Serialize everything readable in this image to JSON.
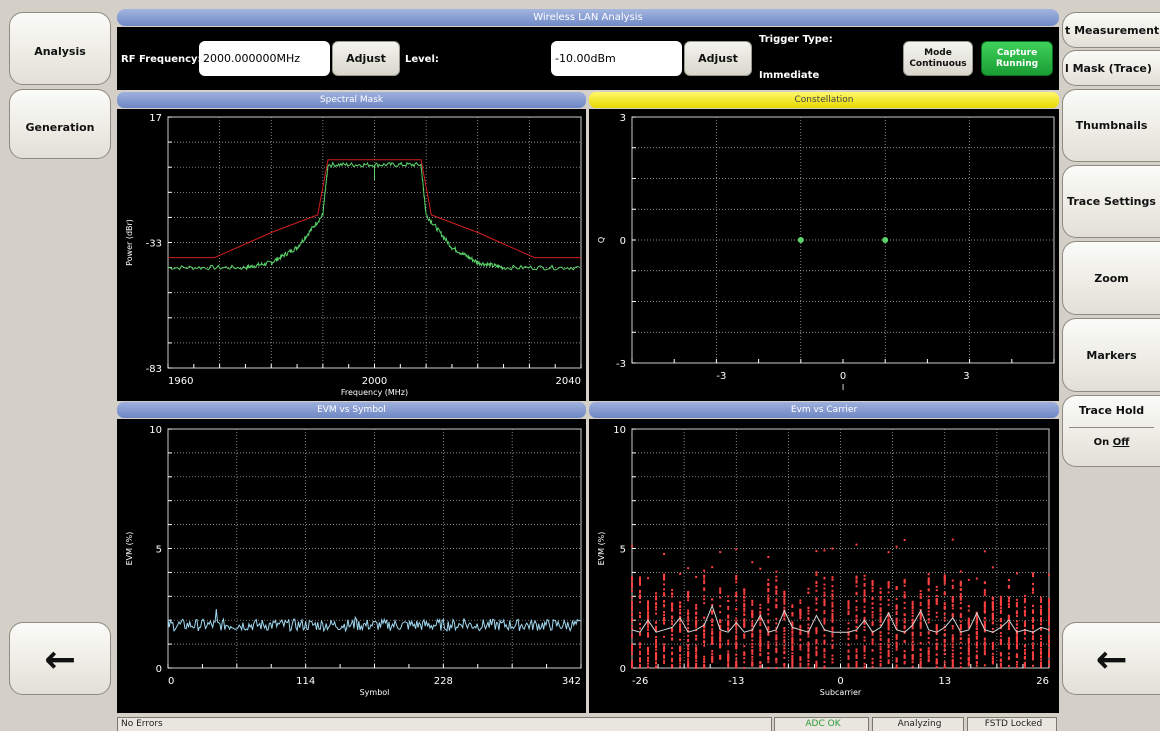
{
  "left_panel": {
    "analysis_label": "Analysis",
    "generation_label": "Generation",
    "back_arrow": "←"
  },
  "right_panel": {
    "measurement_label": "t Measurement",
    "mask_trace_label": "l Mask (Trace)",
    "thumbnails_label": "Thumbnails",
    "trace_settings_label": "Trace Settings",
    "zoom_label": "Zoom",
    "markers_label": "Markers",
    "trace_hold_label": "Trace Hold",
    "trace_hold_on": "On",
    "trace_hold_off": "Off",
    "back_arrow": "←"
  },
  "title": "Wireless LAN Analysis",
  "controls": {
    "rf_frequency_label": "RF Frequency:",
    "rf_frequency_value": "2000.000000MHz",
    "adjust_label": "Adjust",
    "level_label": "Level:",
    "level_value": "-10.00dBm",
    "trigger_type_label": "Trigger Type:",
    "trigger_type_value": "Immediate",
    "mode_line1": "Mode",
    "mode_line2": "Continuous",
    "capture_line1": "Capture",
    "capture_line2": "Running"
  },
  "colors": {
    "accent_blue": "#6d86c4",
    "constellation_yellow": "#f2e600",
    "trace_green": "#5bd46a",
    "mask_red": "#d02020",
    "evm_symbol_trace": "#9fd8f0",
    "evm_carrier_points": "#ff4040",
    "capture_green": "#1a9d34"
  },
  "chart_data": [
    {
      "name": "Spectral Mask",
      "type": "line",
      "xlabel": "Frequency (MHz)",
      "ylabel": "Power (dBr)",
      "xlim": [
        1960,
        2040
      ],
      "ylim": [
        -83,
        17
      ],
      "xticks": [
        "1960",
        "2000",
        "2040"
      ],
      "yticks": [
        "17",
        "-33",
        "-83"
      ],
      "series": [
        {
          "color": "mask_red",
          "x": [
            1960,
            1969,
            1980,
            1989,
            1991,
            2009,
            2011,
            2020,
            2031,
            2040
          ],
          "y": [
            -39,
            -39,
            -29,
            -22,
            0,
            0,
            -22,
            -29,
            -39,
            -39
          ]
        },
        {
          "color": "trace_green",
          "x": [
            1960,
            1975,
            1980,
            1985,
            1990,
            1991,
            2000,
            2009,
            2010,
            2015,
            2020,
            2025,
            2040
          ],
          "y": [
            -43,
            -43,
            -41,
            -35,
            -22,
            -2,
            -2,
            -2,
            -22,
            -35,
            -41,
            -43,
            -43
          ]
        }
      ]
    },
    {
      "name": "Constellation",
      "type": "scatter",
      "xlabel": "I",
      "ylabel": "Q",
      "xlim": [
        -5,
        5
      ],
      "ylim": [
        -3,
        3
      ],
      "xticks": [
        "-3",
        "0",
        "3"
      ],
      "yticks": [
        "3",
        "0",
        "-3"
      ],
      "points": [
        [
          -1,
          0
        ],
        [
          1,
          0
        ]
      ]
    },
    {
      "name": "EVM vs Symbol",
      "type": "line",
      "xlabel": "Symbol",
      "ylabel": "EVM (%)",
      "xlim": [
        0,
        342
      ],
      "ylim": [
        0,
        10
      ],
      "xticks": [
        "0",
        "114",
        "228",
        "342"
      ],
      "yticks": [
        "10",
        "5",
        "0"
      ],
      "mean": 1.8,
      "spread": 0.25
    },
    {
      "name": "Evm vs Carrier",
      "type": "scatter",
      "xlabel": "Subcarrier",
      "ylabel": "EVM (%)",
      "xlim": [
        -26,
        26
      ],
      "ylim": [
        0,
        10
      ],
      "xticks": [
        "-26",
        "-13",
        "0",
        "13",
        "26"
      ],
      "yticks": [
        "10",
        "5",
        "0"
      ],
      "mean_line": [
        1.6,
        1.5,
        2.0,
        1.5,
        1.6,
        1.7,
        2.1,
        1.5,
        1.6,
        1.8,
        2.6,
        1.6,
        1.5,
        1.9,
        1.5,
        1.6,
        2.2,
        1.5,
        1.6,
        2.4,
        1.7,
        1.6,
        1.5,
        2.2,
        1.6,
        1.5,
        1.5,
        1.6,
        2.0,
        1.5,
        1.7,
        2.3,
        1.6,
        1.5,
        1.8,
        2.4,
        1.6,
        1.5,
        1.7,
        2.1,
        1.5,
        1.6,
        2.3,
        1.6,
        1.5,
        1.7,
        2.0,
        1.5,
        1.6,
        1.5,
        1.7,
        1.6
      ]
    }
  ],
  "status": {
    "errors": "No Errors",
    "adc": "ADC OK",
    "state": "Analyzing",
    "fstd": "FSTD Locked"
  }
}
